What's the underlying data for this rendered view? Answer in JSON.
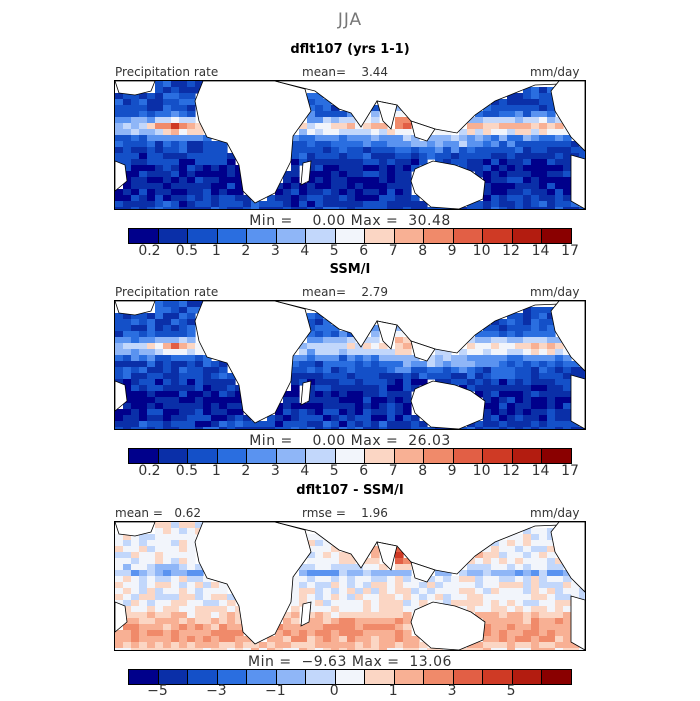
{
  "season": "JJA",
  "colors": {
    "precip": [
      "#00008b",
      "#0a2fa8",
      "#1450c8",
      "#2a6ee0",
      "#5a93f0",
      "#8fb6f7",
      "#c2d7fb",
      "#f2f5fb",
      "#fbd6c4",
      "#f8b094",
      "#f08a6a",
      "#e25f45",
      "#cf3a25",
      "#b31c10",
      "#8a0000"
    ],
    "diff": [
      "#00008b",
      "#0a2fa8",
      "#1450c8",
      "#2a6ee0",
      "#5a93f0",
      "#8fb6f7",
      "#c2d7fb",
      "#f2f5fb",
      "#fbd6c4",
      "#f8b094",
      "#f08a6a",
      "#e25f45",
      "#cf3a25",
      "#b31c10",
      "#8a0000"
    ],
    "land": "#ffffff"
  },
  "panels": [
    {
      "subtitle": "dflt107 (yrs 1-1)",
      "left_label": "Precipitation rate",
      "mid_label": "mean=    3.44",
      "units": "mm/day",
      "minmax": "Min =    0.00 Max =  30.48",
      "tick_labels": [
        "0.2",
        "0.5",
        "1",
        "2",
        "3",
        "4",
        "5",
        "6",
        "7",
        "8",
        "9",
        "10",
        "12",
        "14",
        "17"
      ],
      "itcz_intensity": 1.0
    },
    {
      "subtitle": "SSM/I",
      "left_label": "Precipitation rate",
      "mid_label": "mean=    2.79",
      "units": "mm/day",
      "minmax": "Min =    0.00 Max =  26.03",
      "tick_labels": [
        "0.2",
        "0.5",
        "1",
        "2",
        "3",
        "4",
        "5",
        "6",
        "7",
        "8",
        "9",
        "10",
        "12",
        "14",
        "17"
      ],
      "itcz_intensity": 0.9
    },
    {
      "subtitle": "dflt107 - SSM/I",
      "left_label": "mean =   0.62",
      "mid_label": "rmse =    1.96",
      "units": "mm/day",
      "minmax": "Min =  −9.63 Max =  13.06",
      "tick_labels": [
        "−5",
        "−3",
        "−1",
        "0",
        "1",
        "3",
        "5"
      ]
    }
  ]
}
